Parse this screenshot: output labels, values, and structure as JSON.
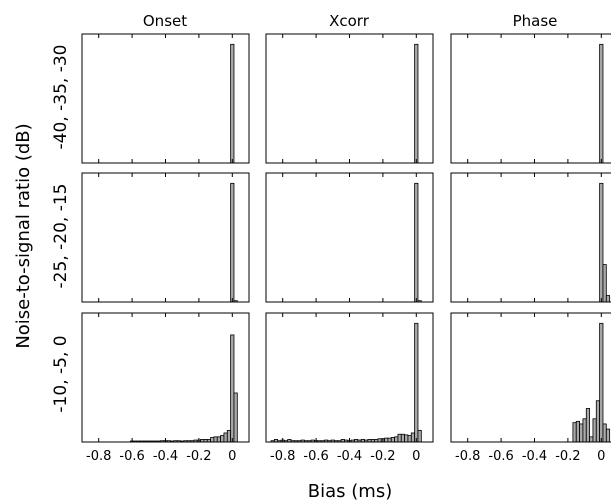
{
  "chart_data": {
    "type": "bar",
    "layout": "small-multiples 3x3 histograms",
    "columns": [
      "Onset",
      "Xcorr",
      "Phase"
    ],
    "rows": [
      "-40, -35, -30",
      "-25, -20, -15",
      "-10, -5, 0"
    ],
    "xlabel": "Bias (ms)",
    "ylabel": "Noise-to-signal ratio (dB)",
    "xlim": [
      -0.9,
      0.1
    ],
    "xticks": [
      -0.8,
      -0.6,
      -0.4,
      -0.2,
      0
    ],
    "xtick_labels": [
      "-0.8",
      "-0.6",
      "-0.4",
      "-0.2",
      "0"
    ],
    "bin_width": 0.02,
    "ylim": [
      0,
      1
    ],
    "y_scale": "relative frequency, normalized to tallest bar per panel",
    "panels": [
      {
        "row": 0,
        "col": 0,
        "bins": [
          {
            "x": 0.0,
            "h": 0.92
          }
        ]
      },
      {
        "row": 0,
        "col": 1,
        "bins": [
          {
            "x": 0.0,
            "h": 0.92
          }
        ]
      },
      {
        "row": 0,
        "col": 2,
        "bins": [
          {
            "x": 0.0,
            "h": 0.92
          }
        ]
      },
      {
        "row": 1,
        "col": 0,
        "bins": [
          {
            "x": 0.0,
            "h": 0.92
          },
          {
            "x": 0.02,
            "h": 0.01
          }
        ]
      },
      {
        "row": 1,
        "col": 1,
        "bins": [
          {
            "x": 0.0,
            "h": 0.92
          },
          {
            "x": 0.02,
            "h": 0.01
          }
        ]
      },
      {
        "row": 1,
        "col": 2,
        "bins": [
          {
            "x": 0.0,
            "h": 0.92
          },
          {
            "x": 0.02,
            "h": 0.29
          },
          {
            "x": 0.04,
            "h": 0.05
          }
        ]
      },
      {
        "row": 2,
        "col": 0,
        "bins": [
          {
            "x": -0.6,
            "h": 0.005
          },
          {
            "x": -0.58,
            "h": 0.005
          },
          {
            "x": -0.56,
            "h": 0.005
          },
          {
            "x": -0.54,
            "h": 0.005
          },
          {
            "x": -0.52,
            "h": 0.005
          },
          {
            "x": -0.5,
            "h": 0.005
          },
          {
            "x": -0.48,
            "h": 0.005
          },
          {
            "x": -0.46,
            "h": 0.005
          },
          {
            "x": -0.44,
            "h": 0.005
          },
          {
            "x": -0.42,
            "h": 0.01
          },
          {
            "x": -0.4,
            "h": 0.01
          },
          {
            "x": -0.38,
            "h": 0.01
          },
          {
            "x": -0.36,
            "h": 0.005
          },
          {
            "x": -0.34,
            "h": 0.01
          },
          {
            "x": -0.32,
            "h": 0.01
          },
          {
            "x": -0.3,
            "h": 0.005
          },
          {
            "x": -0.28,
            "h": 0.01
          },
          {
            "x": -0.26,
            "h": 0.01
          },
          {
            "x": -0.24,
            "h": 0.01
          },
          {
            "x": -0.22,
            "h": 0.015
          },
          {
            "x": -0.2,
            "h": 0.015
          },
          {
            "x": -0.18,
            "h": 0.02
          },
          {
            "x": -0.16,
            "h": 0.02
          },
          {
            "x": -0.14,
            "h": 0.02
          },
          {
            "x": -0.12,
            "h": 0.035
          },
          {
            "x": -0.1,
            "h": 0.04
          },
          {
            "x": -0.08,
            "h": 0.04
          },
          {
            "x": -0.06,
            "h": 0.05
          },
          {
            "x": -0.04,
            "h": 0.07
          },
          {
            "x": -0.02,
            "h": 0.09
          },
          {
            "x": 0.0,
            "h": 0.83
          },
          {
            "x": 0.02,
            "h": 0.38
          }
        ]
      },
      {
        "row": 2,
        "col": 1,
        "bins": [
          {
            "x": -0.86,
            "h": 0.01
          },
          {
            "x": -0.84,
            "h": 0.02
          },
          {
            "x": -0.82,
            "h": 0.01
          },
          {
            "x": -0.8,
            "h": 0.015
          },
          {
            "x": -0.78,
            "h": 0.01
          },
          {
            "x": -0.76,
            "h": 0.02
          },
          {
            "x": -0.74,
            "h": 0.01
          },
          {
            "x": -0.72,
            "h": 0.01
          },
          {
            "x": -0.7,
            "h": 0.01
          },
          {
            "x": -0.68,
            "h": 0.015
          },
          {
            "x": -0.66,
            "h": 0.01
          },
          {
            "x": -0.64,
            "h": 0.01
          },
          {
            "x": -0.62,
            "h": 0.015
          },
          {
            "x": -0.6,
            "h": 0.01
          },
          {
            "x": -0.58,
            "h": 0.01
          },
          {
            "x": -0.56,
            "h": 0.01
          },
          {
            "x": -0.54,
            "h": 0.015
          },
          {
            "x": -0.52,
            "h": 0.01
          },
          {
            "x": -0.5,
            "h": 0.015
          },
          {
            "x": -0.48,
            "h": 0.01
          },
          {
            "x": -0.46,
            "h": 0.01
          },
          {
            "x": -0.44,
            "h": 0.02
          },
          {
            "x": -0.42,
            "h": 0.015
          },
          {
            "x": -0.4,
            "h": 0.01
          },
          {
            "x": -0.38,
            "h": 0.015
          },
          {
            "x": -0.36,
            "h": 0.02
          },
          {
            "x": -0.34,
            "h": 0.015
          },
          {
            "x": -0.32,
            "h": 0.02
          },
          {
            "x": -0.3,
            "h": 0.015
          },
          {
            "x": -0.28,
            "h": 0.02
          },
          {
            "x": -0.26,
            "h": 0.02
          },
          {
            "x": -0.24,
            "h": 0.02
          },
          {
            "x": -0.22,
            "h": 0.025
          },
          {
            "x": -0.2,
            "h": 0.025
          },
          {
            "x": -0.18,
            "h": 0.03
          },
          {
            "x": -0.16,
            "h": 0.03
          },
          {
            "x": -0.14,
            "h": 0.035
          },
          {
            "x": -0.12,
            "h": 0.04
          },
          {
            "x": -0.1,
            "h": 0.06
          },
          {
            "x": -0.08,
            "h": 0.06
          },
          {
            "x": -0.06,
            "h": 0.055
          },
          {
            "x": -0.04,
            "h": 0.05
          },
          {
            "x": -0.02,
            "h": 0.07
          },
          {
            "x": 0.0,
            "h": 0.92
          },
          {
            "x": 0.02,
            "h": 0.09
          }
        ]
      },
      {
        "row": 2,
        "col": 2,
        "bins": [
          {
            "x": -0.16,
            "h": 0.15
          },
          {
            "x": -0.14,
            "h": 0.16
          },
          {
            "x": -0.12,
            "h": 0.14
          },
          {
            "x": -0.1,
            "h": 0.18
          },
          {
            "x": -0.08,
            "h": 0.26
          },
          {
            "x": -0.06,
            "h": 0.04
          },
          {
            "x": -0.04,
            "h": 0.18
          },
          {
            "x": -0.02,
            "h": 0.32
          },
          {
            "x": 0.0,
            "h": 0.92
          },
          {
            "x": 0.02,
            "h": 0.14
          },
          {
            "x": 0.04,
            "h": 0.1
          }
        ]
      }
    ]
  }
}
